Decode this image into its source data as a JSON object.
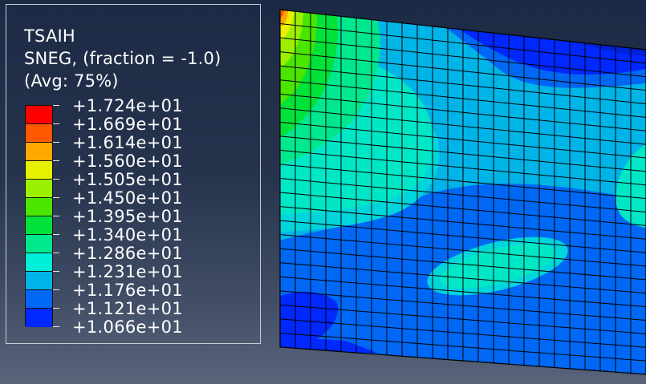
{
  "legend": {
    "variable": "TSAIH",
    "section": "SNEG, (fraction = -1.0)",
    "averaging": "(Avg: 75%)",
    "entries": [
      {
        "label": "+1.724e+01",
        "color": "#ff0000"
      },
      {
        "label": "+1.669e+01",
        "color": "#ff5a00"
      },
      {
        "label": "+1.614e+01",
        "color": "#ffa800"
      },
      {
        "label": "+1.560e+01",
        "color": "#e6f000"
      },
      {
        "label": "+1.505e+01",
        "color": "#9bef00"
      },
      {
        "label": "+1.450e+01",
        "color": "#4ae600"
      },
      {
        "label": "+1.395e+01",
        "color": "#00e23a"
      },
      {
        "label": "+1.340e+01",
        "color": "#00e88d"
      },
      {
        "label": "+1.286e+01",
        "color": "#00efd8"
      },
      {
        "label": "+1.231e+01",
        "color": "#00b4e8"
      },
      {
        "label": "+1.176e+01",
        "color": "#0068f4"
      },
      {
        "label": "+1.121e+01",
        "color": "#0028ff"
      },
      {
        "label": "+1.066e+01",
        "color": "#0028ff"
      }
    ]
  },
  "mesh": {
    "columns": 24,
    "rows": 24,
    "line_color": "#000000"
  }
}
